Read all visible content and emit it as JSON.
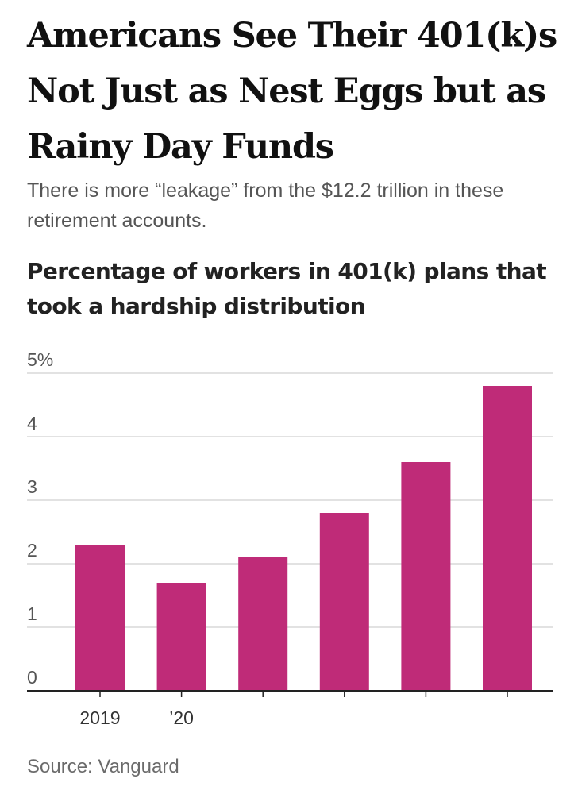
{
  "headline": "Americans See Their 401(k)s Not Just as Nest Eggs but as Rainy Day Funds",
  "dek": "There is more “leakage” from the $12.2 trillion in these retirement accounts.",
  "source": "Source: Vanguard",
  "colors": {
    "bar": "#bf2b78",
    "grid": "#d9d9d9",
    "axis": "#222222",
    "tick_text": "#555555"
  },
  "chart_data": {
    "type": "bar",
    "title": "Percentage of workers in 401(k) plans that took a hardship distribution",
    "xlabel": "",
    "ylabel": "",
    "categories": [
      "2019",
      "’20",
      "",
      "",
      "",
      ""
    ],
    "values": [
      2.3,
      1.7,
      2.1,
      2.8,
      3.6,
      4.8
    ],
    "ylim": [
      0,
      5
    ],
    "yticks": [
      0,
      1,
      2,
      3,
      4,
      5
    ],
    "ytick_labels": [
      "0",
      "1",
      "2",
      "3",
      "4",
      "5%"
    ],
    "grid": true,
    "legend": "none"
  }
}
